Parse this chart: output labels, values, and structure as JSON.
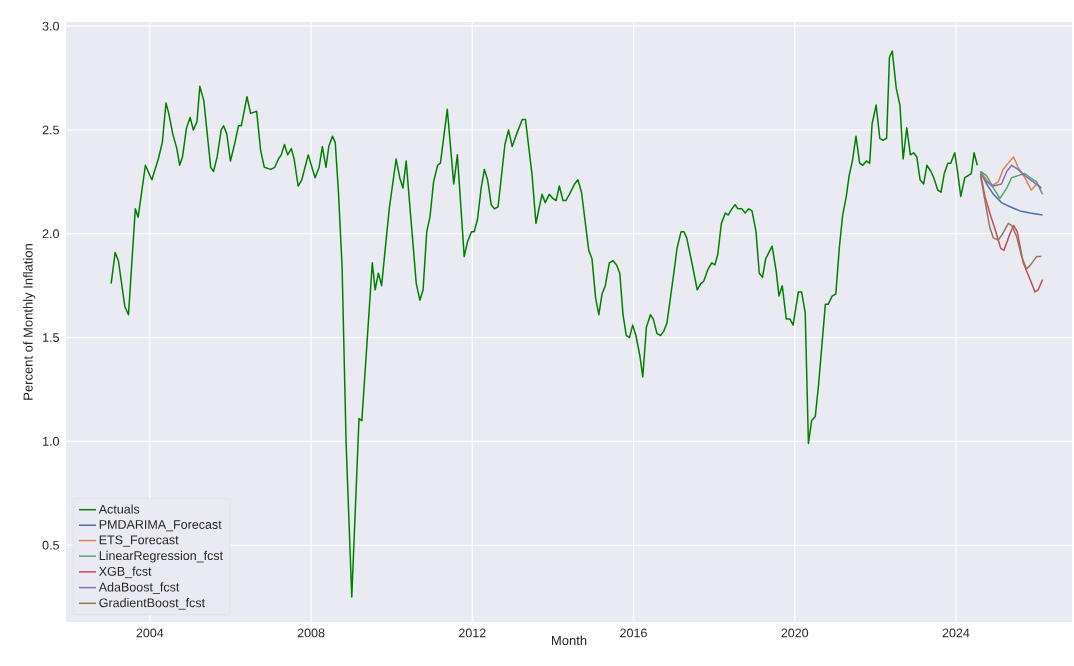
{
  "chart_data": {
    "type": "line",
    "xlabel": "Month",
    "ylabel": "Percent of Monthly Inflation",
    "xlim": [
      2001.92,
      2026.88
    ],
    "ylim": [
      0.13,
      3.02
    ],
    "xticks": [
      2004,
      2008,
      2012,
      2016,
      2020,
      2024
    ],
    "yticks": [
      {
        "value": 0.5,
        "label": "0.5"
      },
      {
        "value": 1.0,
        "label": "1.0"
      },
      {
        "value": 1.5,
        "label": "1.5"
      },
      {
        "value": 2.0,
        "label": "2.0"
      },
      {
        "value": 2.5,
        "label": "2.5"
      },
      {
        "value": 3.0,
        "label": "3.0"
      }
    ],
    "grid": true,
    "legend": "bottom left",
    "line_style": "solid",
    "series": [
      {
        "name": "Actuals",
        "color": "#008000",
        "x": [
          2003.04,
          2003.14,
          2003.22,
          2003.38,
          2003.47,
          2003.64,
          2003.71,
          2003.89,
          2004.05,
          2004.21,
          2004.31,
          2004.4,
          2004.47,
          2004.57,
          2004.67,
          2004.74,
          2004.81,
          2004.91,
          2005.0,
          2005.08,
          2005.17,
          2005.24,
          2005.34,
          2005.43,
          2005.51,
          2005.58,
          2005.67,
          2005.77,
          2005.83,
          2005.91,
          2006.0,
          2006.1,
          2006.2,
          2006.27,
          2006.41,
          2006.5,
          2006.65,
          2006.75,
          2006.84,
          2007.0,
          2007.1,
          2007.19,
          2007.26,
          2007.34,
          2007.42,
          2007.51,
          2007.58,
          2007.68,
          2007.77,
          2007.93,
          2008.1,
          2008.2,
          2008.28,
          2008.37,
          2008.44,
          2008.53,
          2008.6,
          2008.68,
          2008.77,
          2008.87,
          2009.01,
          2009.19,
          2009.26,
          2009.52,
          2009.59,
          2009.67,
          2009.75,
          2009.94,
          2010.11,
          2010.2,
          2010.28,
          2010.36,
          2010.47,
          2010.61,
          2010.7,
          2010.78,
          2010.87,
          2010.95,
          2011.04,
          2011.14,
          2011.21,
          2011.38,
          2011.54,
          2011.63,
          2011.8,
          2011.88,
          2011.98,
          2012.05,
          2012.13,
          2012.22,
          2012.3,
          2012.38,
          2012.47,
          2012.55,
          2012.64,
          2012.81,
          2012.9,
          2012.99,
          2013.1,
          2013.24,
          2013.32,
          2013.48,
          2013.58,
          2013.73,
          2013.81,
          2013.91,
          2014.0,
          2014.08,
          2014.16,
          2014.25,
          2014.32,
          2014.41,
          2014.54,
          2014.62,
          2014.71,
          2014.89,
          2014.97,
          2015.06,
          2015.14,
          2015.22,
          2015.3,
          2015.4,
          2015.49,
          2015.58,
          2015.66,
          2015.74,
          2015.82,
          2015.9,
          2015.98,
          2016.06,
          2016.16,
          2016.23,
          2016.32,
          2016.42,
          2016.49,
          2016.58,
          2016.67,
          2016.75,
          2016.83,
          2017.0,
          2017.08,
          2017.18,
          2017.25,
          2017.32,
          2017.47,
          2017.58,
          2017.67,
          2017.74,
          2017.85,
          2017.94,
          2018.02,
          2018.09,
          2018.18,
          2018.28,
          2018.35,
          2018.44,
          2018.52,
          2018.59,
          2018.69,
          2018.77,
          2018.86,
          2018.94,
          2019.04,
          2019.12,
          2019.2,
          2019.28,
          2019.44,
          2019.54,
          2019.61,
          2019.69,
          2019.79,
          2019.88,
          2019.96,
          2020.09,
          2020.17,
          2020.26,
          2020.34,
          2020.42,
          2020.51,
          2020.59,
          2020.76,
          2020.83,
          2020.93,
          2021.02,
          2021.11,
          2021.19,
          2021.28,
          2021.35,
          2021.43,
          2021.52,
          2021.61,
          2021.69,
          2021.78,
          2021.86,
          2021.92,
          2022.02,
          2022.11,
          2022.19,
          2022.28,
          2022.35,
          2022.42,
          2022.52,
          2022.61,
          2022.69,
          2022.78,
          2022.87,
          2022.95,
          2023.03,
          2023.11,
          2023.2,
          2023.28,
          2023.38,
          2023.45,
          2023.55,
          2023.63,
          2023.71,
          2023.8,
          2023.87,
          2023.97,
          2024.04,
          2024.12,
          2024.22,
          2024.3,
          2024.38,
          2024.45,
          2024.53
        ],
        "values": [
          1.76,
          1.91,
          1.87,
          1.65,
          1.61,
          2.12,
          2.08,
          2.33,
          2.26,
          2.36,
          2.44,
          2.63,
          2.58,
          2.48,
          2.41,
          2.33,
          2.37,
          2.51,
          2.56,
          2.5,
          2.54,
          2.71,
          2.64,
          2.47,
          2.32,
          2.3,
          2.37,
          2.5,
          2.52,
          2.48,
          2.35,
          2.43,
          2.52,
          2.52,
          2.66,
          2.58,
          2.59,
          2.4,
          2.32,
          2.31,
          2.32,
          2.36,
          2.38,
          2.43,
          2.38,
          2.41,
          2.36,
          2.23,
          2.26,
          2.38,
          2.27,
          2.32,
          2.42,
          2.32,
          2.42,
          2.47,
          2.44,
          2.2,
          1.84,
          0.99,
          0.25,
          1.11,
          1.1,
          1.86,
          1.73,
          1.81,
          1.75,
          2.12,
          2.36,
          2.27,
          2.22,
          2.35,
          2.09,
          1.76,
          1.68,
          1.73,
          2.01,
          2.08,
          2.25,
          2.33,
          2.34,
          2.6,
          2.24,
          2.38,
          1.89,
          1.96,
          2.01,
          2.01,
          2.07,
          2.22,
          2.31,
          2.26,
          2.14,
          2.12,
          2.13,
          2.43,
          2.5,
          2.42,
          2.48,
          2.55,
          2.55,
          2.29,
          2.05,
          2.19,
          2.15,
          2.19,
          2.17,
          2.16,
          2.23,
          2.16,
          2.16,
          2.19,
          2.24,
          2.26,
          2.2,
          1.92,
          1.88,
          1.69,
          1.61,
          1.71,
          1.75,
          1.86,
          1.87,
          1.85,
          1.81,
          1.61,
          1.51,
          1.5,
          1.56,
          1.51,
          1.41,
          1.31,
          1.55,
          1.61,
          1.59,
          1.52,
          1.51,
          1.53,
          1.57,
          1.81,
          1.93,
          2.01,
          2.01,
          1.98,
          1.84,
          1.73,
          1.76,
          1.77,
          1.83,
          1.86,
          1.85,
          1.9,
          2.05,
          2.1,
          2.09,
          2.12,
          2.14,
          2.12,
          2.12,
          2.1,
          2.12,
          2.11,
          2.01,
          1.81,
          1.79,
          1.88,
          1.94,
          1.82,
          1.7,
          1.75,
          1.59,
          1.59,
          1.56,
          1.72,
          1.72,
          1.62,
          0.99,
          1.1,
          1.12,
          1.27,
          1.66,
          1.66,
          1.7,
          1.71,
          1.94,
          2.09,
          2.18,
          2.28,
          2.35,
          2.47,
          2.34,
          2.33,
          2.35,
          2.34,
          2.53,
          2.62,
          2.46,
          2.45,
          2.46,
          2.85,
          2.88,
          2.7,
          2.62,
          2.36,
          2.51,
          2.38,
          2.39,
          2.37,
          2.26,
          2.24,
          2.33,
          2.3,
          2.27,
          2.21,
          2.2,
          2.29,
          2.34,
          2.34,
          2.39,
          2.3,
          2.18,
          2.27,
          2.28,
          2.29,
          2.39,
          2.33
        ]
      },
      {
        "name": "PMDARIMA_Forecast",
        "color": "#4c72b0",
        "x": [
          2024.61,
          2024.76,
          2024.93,
          2025.13,
          2025.34,
          2025.59,
          2025.84,
          2026.15
        ],
        "values": [
          2.3,
          2.24,
          2.19,
          2.15,
          2.13,
          2.11,
          2.1,
          2.09
        ]
      },
      {
        "name": "ETS_Forecast",
        "color": "#dd8452",
        "x": [
          2024.61,
          2024.76,
          2024.88,
          2025.05,
          2025.17,
          2025.34,
          2025.43,
          2025.54,
          2025.71,
          2025.87,
          2026.0,
          2026.12
        ],
        "values": [
          2.3,
          2.26,
          2.23,
          2.25,
          2.31,
          2.35,
          2.37,
          2.32,
          2.27,
          2.21,
          2.24,
          2.22
        ]
      },
      {
        "name": "LinearRegression_fcst",
        "color": "#55a868",
        "x": [
          2024.61,
          2024.76,
          2024.93,
          2025.09,
          2025.26,
          2025.38,
          2025.54,
          2025.71,
          2025.84,
          2026.0,
          2026.15
        ],
        "values": [
          2.3,
          2.28,
          2.22,
          2.17,
          2.22,
          2.27,
          2.28,
          2.29,
          2.27,
          2.25,
          2.19
        ]
      },
      {
        "name": "XGB_fcst",
        "color": "#c44e52",
        "x": [
          2024.61,
          2024.72,
          2024.84,
          2024.99,
          2025.11,
          2025.19,
          2025.34,
          2025.43,
          2025.52,
          2025.67,
          2025.84,
          2025.96,
          2026.04,
          2026.15
        ],
        "values": [
          2.29,
          2.18,
          2.1,
          2.01,
          1.93,
          1.92,
          2.0,
          2.04,
          2.01,
          1.86,
          1.78,
          1.72,
          1.73,
          1.78
        ]
      },
      {
        "name": "AdaBoost_fcst",
        "color": "#8172b3",
        "x": [
          2024.61,
          2024.76,
          2024.93,
          2025.13,
          2025.26,
          2025.38,
          2025.54,
          2025.71,
          2025.92,
          2026.12
        ],
        "values": [
          2.29,
          2.25,
          2.23,
          2.24,
          2.3,
          2.33,
          2.31,
          2.28,
          2.25,
          2.22
        ]
      },
      {
        "name": "GradientBoost_fcst",
        "color": "#937860",
        "x": [
          2024.61,
          2024.72,
          2024.84,
          2024.93,
          2025.05,
          2025.16,
          2025.3,
          2025.38,
          2025.5,
          2025.63,
          2025.75,
          2025.85,
          2026.0,
          2026.12
        ],
        "values": [
          2.28,
          2.16,
          2.03,
          1.98,
          1.97,
          2.0,
          2.05,
          2.04,
          1.99,
          1.89,
          1.83,
          1.85,
          1.89,
          1.89
        ]
      }
    ]
  }
}
